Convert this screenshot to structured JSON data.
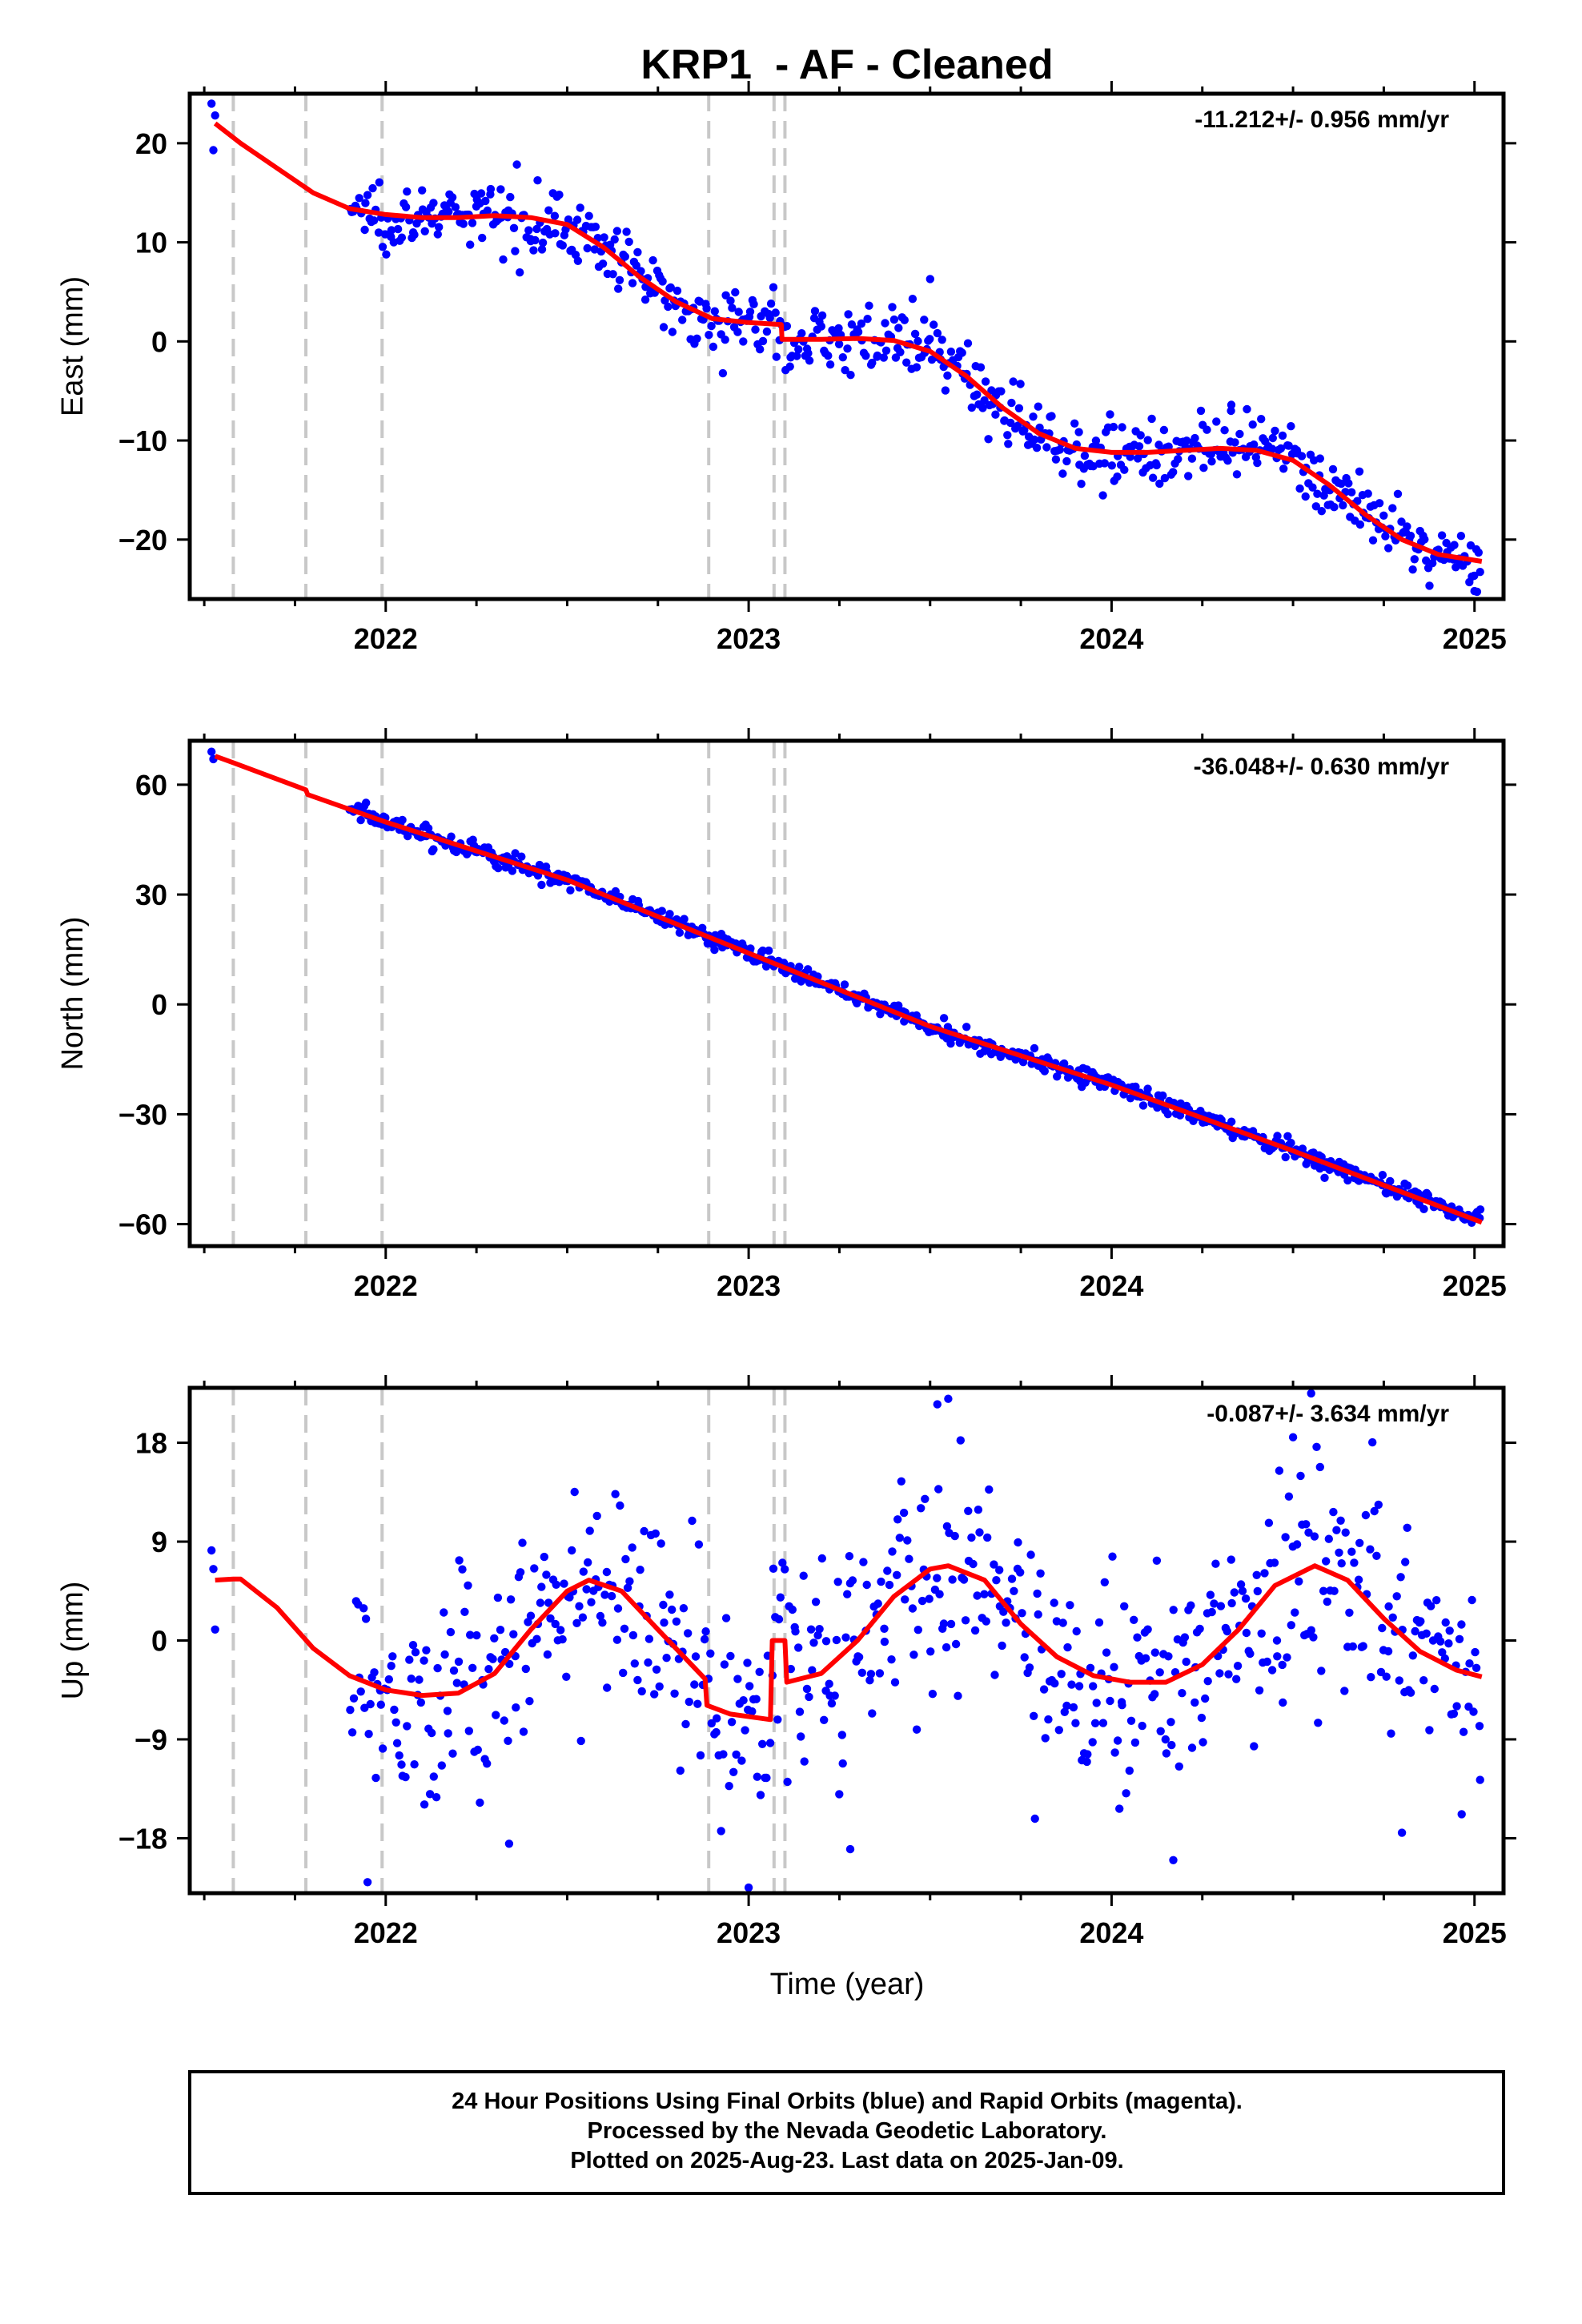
{
  "title": "KRP1  - AF - Cleaned",
  "xlabel": "Time (year)",
  "footer": {
    "line1": "24 Hour Positions Using Final Orbits (blue) and Rapid Orbits (magenta).",
    "line2": "Processed by the Nevada Geodetic Laboratory.",
    "line3": "Plotted on 2025-Aug-23. Last data on 2025-Jan-09."
  },
  "colors": {
    "data": "#0000ff",
    "model": "#ff0000",
    "steps": "#c8c8c8",
    "axes": "#000000"
  },
  "chart_data": [
    {
      "type": "scatter",
      "name": "east",
      "ylabel": "East (mm)",
      "rate_label": "-11.212+/- 0.956 mm/yr",
      "xlim": [
        2021.46,
        2025.08
      ],
      "ylim": [
        -26,
        25
      ],
      "xticks": [
        2022,
        2023,
        2024,
        2025
      ],
      "yticks": [
        -20,
        -10,
        0,
        10,
        20
      ],
      "grid": false,
      "step_lines": [
        2021.58,
        2021.78,
        2021.99,
        2022.89,
        2023.07,
        2023.1
      ],
      "model": {
        "x": [
          2021.53,
          2021.6,
          2021.7,
          2021.8,
          2021.9,
          2022.0,
          2022.1,
          2022.2,
          2022.3,
          2022.4,
          2022.5,
          2022.6,
          2022.7,
          2022.8,
          2022.9,
          2023.0,
          2023.09,
          2023.092,
          2023.2,
          2023.3,
          2023.4,
          2023.5,
          2023.6,
          2023.7,
          2023.8,
          2023.9,
          2024.0,
          2024.1,
          2024.2,
          2024.3,
          2024.4,
          2024.5,
          2024.6,
          2024.7,
          2024.8,
          2024.9,
          2025.02
        ],
        "y": [
          22.0,
          20.0,
          17.5,
          15.0,
          13.4,
          12.8,
          12.5,
          12.5,
          12.7,
          12.5,
          11.8,
          9.5,
          6.5,
          4.0,
          2.3,
          1.9,
          1.7,
          0.2,
          0.2,
          0.3,
          0.1,
          -1.0,
          -3.5,
          -6.7,
          -9.3,
          -10.8,
          -11.2,
          -11.2,
          -11.0,
          -10.8,
          -11.0,
          -12.0,
          -14.5,
          -17.5,
          -20.0,
          -21.5,
          -22.2
        ]
      },
      "scatter_model": {
        "x": [
          2021.9,
          2022.0,
          2022.1,
          2022.2,
          2022.3,
          2022.4,
          2022.5,
          2022.6,
          2022.7,
          2022.8,
          2022.9,
          2023.0,
          2023.09,
          2023.092,
          2023.2,
          2023.3,
          2023.4,
          2023.5,
          2023.6,
          2023.7,
          2023.8,
          2023.9,
          2024.0,
          2024.1,
          2024.2,
          2024.3,
          2024.4,
          2024.5,
          2024.6,
          2024.7,
          2024.8,
          2024.9,
          2025.02
        ],
        "y": [
          13.4,
          12.8,
          12.5,
          12.5,
          12.7,
          12.5,
          11.8,
          9.5,
          6.5,
          4.0,
          2.3,
          1.9,
          1.7,
          0.2,
          0.2,
          0.3,
          0.1,
          -1.0,
          -3.5,
          -6.7,
          -9.3,
          -10.8,
          -11.2,
          -11.2,
          -11.0,
          -10.8,
          -11.0,
          -12.0,
          -14.5,
          -17.5,
          -20.0,
          -21.5,
          -22.2
        ]
      },
      "noise": 1.6,
      "n_points": 650,
      "outliers": [
        {
          "x": 2021.52,
          "y": 24.0
        },
        {
          "x": 2021.525,
          "y": 19.3
        },
        {
          "x": 2021.53,
          "y": 22.8
        },
        {
          "x": 2023.5,
          "y": 6.3
        },
        {
          "x": 2024.33,
          "y": -6.4
        },
        {
          "x": 2025.0,
          "y": -25.2
        }
      ]
    },
    {
      "type": "scatter",
      "name": "north",
      "ylabel": "North (mm)",
      "rate_label": "-36.048+/- 0.630 mm/yr",
      "xlim": [
        2021.46,
        2025.08
      ],
      "ylim": [
        -66,
        72
      ],
      "xticks": [
        2022,
        2023,
        2024,
        2025
      ],
      "yticks": [
        -60,
        -30,
        0,
        30,
        60
      ],
      "grid": false,
      "step_lines": [
        2021.58,
        2021.78,
        2021.99,
        2022.89,
        2023.07,
        2023.1
      ],
      "model": {
        "x": [
          2021.53,
          2021.58,
          2021.78,
          2021.785,
          2022.0,
          2022.5,
          2023.0,
          2023.5,
          2024.0,
          2024.5,
          2025.02
        ],
        "y": [
          67.8,
          66.0,
          58.6,
          57.3,
          49.8,
          34.0,
          14.0,
          -6.0,
          -22.0,
          -40.0,
          -59.5
        ]
      },
      "scatter_model": {
        "x": [
          2021.9,
          2022.0,
          2022.5,
          2023.0,
          2023.5,
          2024.0,
          2024.5,
          2025.02
        ],
        "y": [
          53.4,
          49.8,
          34.0,
          14.0,
          -6.0,
          -22.0,
          -40.0,
          -59.5
        ]
      },
      "noise": 1.3,
      "n_points": 650,
      "outliers": [
        {
          "x": 2021.52,
          "y": 69.0
        },
        {
          "x": 2021.525,
          "y": 67.0
        }
      ]
    },
    {
      "type": "scatter",
      "name": "up",
      "ylabel": "Up (mm)",
      "rate_label": "-0.087+/- 3.634 mm/yr",
      "xlim": [
        2021.46,
        2025.08
      ],
      "ylim": [
        -23,
        23
      ],
      "xticks": [
        2022,
        2023,
        2024,
        2025
      ],
      "yticks": [
        -18,
        -9,
        0,
        9,
        18
      ],
      "grid": false,
      "step_lines": [
        2021.58,
        2021.78,
        2021.99,
        2022.89,
        2023.07,
        2023.1
      ],
      "model": {
        "x": [
          2021.53,
          2021.58,
          2021.6,
          2021.7,
          2021.8,
          2021.9,
          2022.0,
          2022.1,
          2022.2,
          2022.3,
          2022.4,
          2022.5,
          2022.56,
          2022.65,
          2022.75,
          2022.88,
          2022.885,
          2022.95,
          2023.06,
          2023.065,
          2023.1,
          2023.105,
          2023.2,
          2023.3,
          2023.4,
          2023.5,
          2023.55,
          2023.65,
          2023.75,
          2023.85,
          2023.95,
          2024.05,
          2024.15,
          2024.25,
          2024.35,
          2024.45,
          2024.56,
          2024.65,
          2024.75,
          2024.85,
          2024.95,
          2025.02
        ],
        "y": [
          5.5,
          5.6,
          5.6,
          3.0,
          -0.7,
          -3.2,
          -4.5,
          -5.0,
          -4.8,
          -3.0,
          1.0,
          4.5,
          5.5,
          4.5,
          1.0,
          -3.5,
          -5.9,
          -6.7,
          -7.2,
          0.0,
          0.0,
          -3.8,
          -3.0,
          0.0,
          4.0,
          6.5,
          6.8,
          5.5,
          1.5,
          -1.5,
          -3.2,
          -3.8,
          -3.8,
          -2.2,
          1.0,
          5.0,
          6.8,
          5.5,
          2.0,
          -1.0,
          -2.7,
          -3.3
        ]
      },
      "scatter_model": {
        "x": [
          2021.9,
          2022.0,
          2022.1,
          2022.2,
          2022.3,
          2022.4,
          2022.5,
          2022.56,
          2022.65,
          2022.75,
          2022.88,
          2022.885,
          2022.95,
          2023.06,
          2023.065,
          2023.1,
          2023.105,
          2023.2,
          2023.3,
          2023.4,
          2023.5,
          2023.55,
          2023.65,
          2023.75,
          2023.85,
          2023.95,
          2024.05,
          2024.15,
          2024.25,
          2024.35,
          2024.45,
          2024.56,
          2024.65,
          2024.75,
          2024.85,
          2024.95,
          2025.02
        ],
        "y": [
          -3.2,
          -4.5,
          -5.0,
          -4.8,
          -3.0,
          1.0,
          4.5,
          5.5,
          4.5,
          1.0,
          -3.5,
          -5.9,
          -6.7,
          -7.2,
          0.0,
          0.0,
          -3.8,
          -3.0,
          0.0,
          4.0,
          6.5,
          6.8,
          5.5,
          1.5,
          -1.5,
          -3.2,
          -3.8,
          -3.8,
          -2.2,
          1.0,
          5.0,
          6.8,
          5.5,
          2.0,
          -1.0,
          -2.7,
          -3.3
        ]
      },
      "noise": 5.0,
      "n_points": 620,
      "outliers": [
        {
          "x": 2021.52,
          "y": 8.2
        },
        {
          "x": 2021.525,
          "y": 6.5
        },
        {
          "x": 2021.53,
          "y": 1.0
        },
        {
          "x": 2021.95,
          "y": -22.0
        },
        {
          "x": 2022.34,
          "y": -18.5
        },
        {
          "x": 2023.0,
          "y": -22.5
        },
        {
          "x": 2023.28,
          "y": -19.0
        },
        {
          "x": 2023.52,
          "y": 21.5
        },
        {
          "x": 2023.55,
          "y": 22.0
        },
        {
          "x": 2024.17,
          "y": -20.0
        },
        {
          "x": 2024.55,
          "y": 22.5
        },
        {
          "x": 2024.5,
          "y": 18.5
        },
        {
          "x": 2024.8,
          "y": -17.5
        }
      ]
    }
  ]
}
